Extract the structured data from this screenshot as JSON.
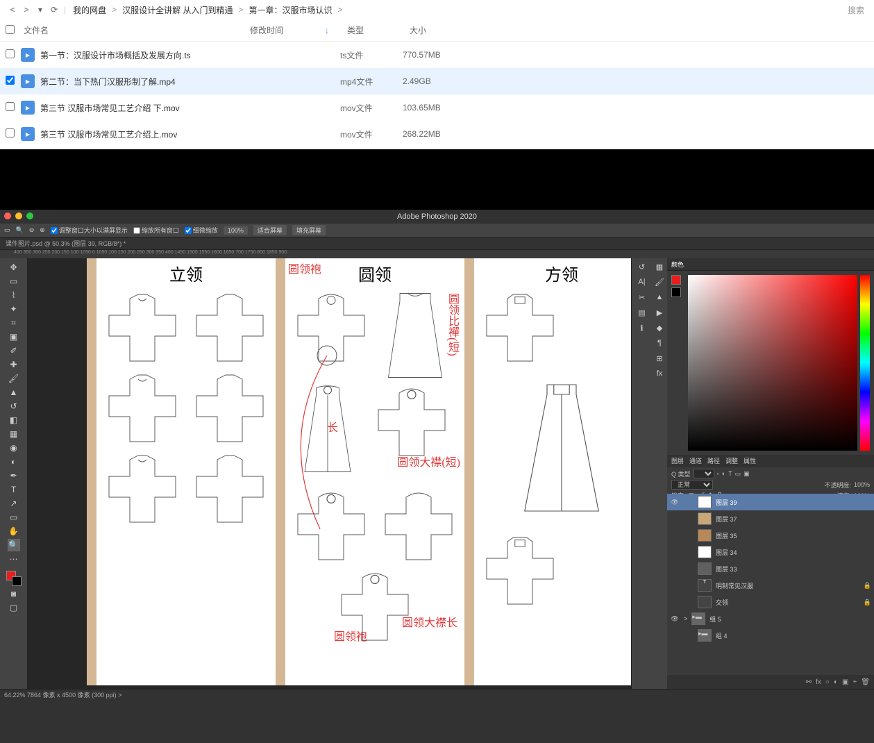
{
  "browser": {
    "breadcrumbs": [
      "我的网盘",
      "汉服设计全讲解 从入门到精通",
      "第一章：汉服市场认识"
    ],
    "search_placeholder": "搜索",
    "headers": {
      "name": "文件名",
      "date": "修改时间",
      "type": "类型",
      "size": "大小"
    },
    "files": [
      {
        "name": "第一节：汉服设计市场概括及发展方向.ts",
        "type": "ts文件",
        "size": "770.57MB",
        "checked": false
      },
      {
        "name": "第二节：当下热门汉服形制了解.mp4",
        "type": "mp4文件",
        "size": "2.49GB",
        "checked": true
      },
      {
        "name": "第三节 汉服市场常见工艺介绍 下.mov",
        "type": "mov文件",
        "size": "103.65MB",
        "checked": false
      },
      {
        "name": "第三节 汉服市场常见工艺介绍上.mov",
        "type": "mov文件",
        "size": "268.22MB",
        "checked": false
      }
    ]
  },
  "ps": {
    "title": "Adobe Photoshop 2020",
    "traffic": {
      "close": "#ff5f57",
      "min": "#febc2e",
      "max": "#28c840"
    },
    "options": {
      "resize_checked": true,
      "resize": "调整窗口大小以满屏显示",
      "zoom_all": "缩放所有窗口",
      "scrubby": "细微缩放",
      "pct": "100%",
      "fit": "适合屏幕",
      "fill": "填充屏幕"
    },
    "tab": "课件图片.psd @ 50.3% (图层 39, RGB/8*) *",
    "ruler": "400  350  300  250  200  150  100  1050  0  1050  100  150  200  250  300  350  400  1450  1500  1550  1600  1650  700  1750  800  1850  900",
    "status": "64.22%    7864 像素 x 4500 像素 (300 ppi)   >",
    "canvas": {
      "col1_title": "立领",
      "col2_title": "圆领",
      "col2_ann_left": "圆领袍",
      "col3_title": "方领",
      "ann_bidan_short": "圆领比襌(短)",
      "ann_chang": "长",
      "ann_daju_short": "圆领大襟(短)",
      "ann_daju": "圆领大襟长",
      "ann_yuanpao": "圆领袍",
      "strip_color": "#d4b896",
      "annotation_color": "#e03838"
    },
    "panels": {
      "color_tab": "颜色",
      "swatch_fg": "#e81e1e",
      "swatch_bg": "#000000",
      "layer_tabs": [
        "图层",
        "通道",
        "路径",
        "调整",
        "属性"
      ],
      "kind_label": "Q 类型",
      "blend": "正常",
      "opacity_label": "不透明度:",
      "opacity": "100%",
      "lock_label": "锁定:",
      "fill_label": "填充:",
      "fill": "100%",
      "layers": [
        {
          "name": "图层 39",
          "sel": true,
          "vis": true,
          "thumb": "#ffffff",
          "indent": 1
        },
        {
          "name": "图层 37",
          "sel": false,
          "vis": false,
          "thumb": "#c8a878",
          "indent": 1
        },
        {
          "name": "图层 35",
          "sel": false,
          "vis": false,
          "thumb": "#b88858",
          "indent": 1
        },
        {
          "name": "图层 34",
          "sel": false,
          "vis": false,
          "thumb": "#ffffff",
          "indent": 1
        },
        {
          "name": "图层 33",
          "sel": false,
          "vis": false,
          "thumb": "#606060",
          "indent": 1
        },
        {
          "name": "明制常见汉服",
          "sel": false,
          "vis": false,
          "thumb": "text",
          "indent": 1,
          "lock": true
        },
        {
          "name": "交领",
          "sel": false,
          "vis": false,
          "thumb": "line",
          "indent": 1,
          "lock": true
        },
        {
          "name": "组 5",
          "sel": false,
          "vis": true,
          "thumb": "folder",
          "indent": 0,
          "expand": ">"
        },
        {
          "name": "组 4",
          "sel": false,
          "vis": false,
          "thumb": "folder",
          "indent": 1
        }
      ],
      "bottom_icons": [
        "fx",
        "○",
        "◐",
        "□",
        "▣",
        "+",
        "🗑"
      ]
    }
  }
}
